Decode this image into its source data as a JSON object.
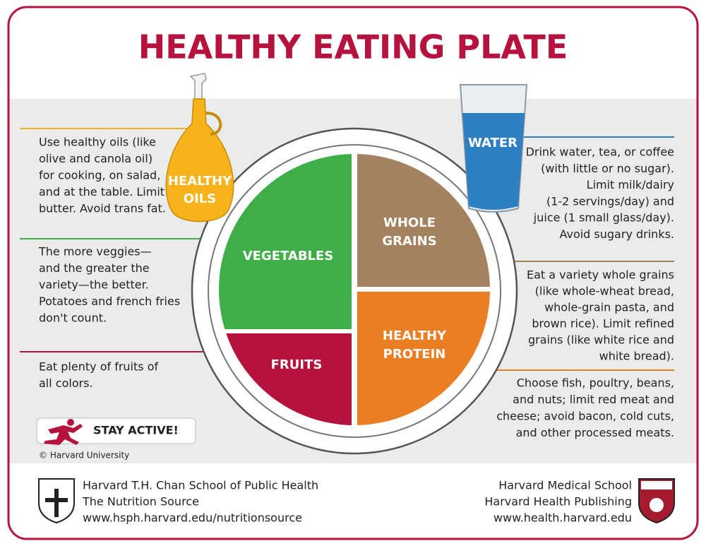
{
  "title": "HEALTHY EATING PLATE",
  "oils": {
    "label": [
      "HEALTHY",
      "OILS"
    ],
    "text": [
      "Use healthy oils (like",
      "olive and canola oil)",
      "for cooking, on salad,",
      "and at the table. Limit",
      "butter. Avoid trans fat."
    ]
  },
  "water": {
    "label": "WATER",
    "text": [
      "Drink water, tea, or coffee",
      "(with little or no sugar).",
      "Limit milk/dairy",
      "(1-2 servings/day) and",
      "juice (1 small glass/day).",
      "Avoid sugary drinks."
    ]
  },
  "plate": {
    "vegetables": "VEGETABLES",
    "whole_grains": [
      "WHOLE",
      "GRAINS"
    ],
    "healthy_protein": [
      "HEALTHY",
      "PROTEIN"
    ],
    "fruits": "FRUITS"
  },
  "vegetables_text": [
    "The more veggies—",
    "and the greater the",
    "variety—the better.",
    "Potatoes and french fries",
    "don't count."
  ],
  "fruits_text": [
    "Eat plenty of fruits of",
    "all colors."
  ],
  "grains_text": [
    "Eat a variety whole grains",
    "(like whole-wheat bread,",
    "whole-grain pasta,  and",
    "brown rice). Limit refined",
    "grains (like white rice and",
    "white bread)."
  ],
  "protein_text": [
    "Choose fish, poultry, beans,",
    "and nuts; limit red meat and",
    "cheese; avoid bacon, cold cuts,",
    "and other processed meats."
  ],
  "stay_active": "STAY ACTIVE!",
  "copyright": "© Harvard University",
  "footer": {
    "left": [
      "Harvard T.H. Chan School of Public Health",
      "The Nutrition Source",
      "www.hsph.harvard.edu/nutritionsource"
    ],
    "right": [
      "Harvard Medical School",
      "Harvard Health Publishing",
      "www.health.harvard.edu"
    ]
  }
}
